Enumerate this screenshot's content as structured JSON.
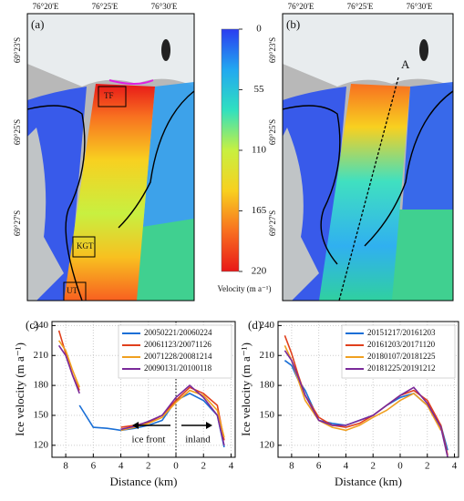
{
  "maps": {
    "panels": [
      "(a)",
      "(b)"
    ],
    "lon_labels": [
      "76°20'E",
      "76°25'E",
      "76°30'E"
    ],
    "lat_labels": [
      "69°23'S",
      "69°25'S",
      "69°27'S"
    ],
    "region_labels": [
      "TF",
      "KGT",
      "UT"
    ],
    "profile_label": "A"
  },
  "colorbar": {
    "label": "Velocity (m a⁻¹)",
    "lim": [
      0,
      220
    ],
    "ticks": [
      0,
      55,
      110,
      165,
      220
    ],
    "colors": [
      "#2a3cf0",
      "#22a8f0",
      "#30e0c0",
      "#c8f040",
      "#f8d020",
      "#f87020",
      "#e81818"
    ]
  },
  "chart_data": [
    {
      "type": "line",
      "panel": "(c)",
      "xlabel": "Distance (km)",
      "ylabel": "Ice velocity (m a⁻¹)",
      "x": [
        8.5,
        8.0,
        7.5,
        7.0,
        6.0,
        5.0,
        4.0,
        3.0,
        2.0,
        1.0,
        0.0,
        -1.0,
        -2.0,
        -3.0,
        -3.5
      ],
      "series": [
        {
          "name": "20050221/20060224",
          "color": "#1a6fd6",
          "values": [
            null,
            null,
            null,
            160,
            138,
            137,
            135,
            137,
            140,
            145,
            165,
            172,
            165,
            150,
            118
          ]
        },
        {
          "name": "20061123/20071126",
          "color": "#e0401c",
          "values": [
            235,
            212,
            190,
            175,
            null,
            null,
            138,
            140,
            143,
            150,
            165,
            178,
            172,
            160,
            125
          ]
        },
        {
          "name": "20071228/20081214",
          "color": "#f0a020",
          "values": [
            225,
            215,
            195,
            178,
            null,
            null,
            135,
            138,
            142,
            148,
            163,
            175,
            170,
            155,
            128
          ]
        },
        {
          "name": "20090131/20100118",
          "color": "#7a2a9a",
          "values": [
            220,
            210,
            190,
            172,
            null,
            null,
            136,
            139,
            144,
            150,
            168,
            180,
            168,
            150,
            120
          ]
        }
      ],
      "xlim": [
        9,
        -4.3
      ],
      "xticks": [
        8,
        6,
        4,
        2,
        0,
        {
          "value": -2,
          "label": "2"
        },
        {
          "value": -4,
          "label": "4"
        }
      ],
      "ylim": [
        108,
        244
      ],
      "yticks": [
        120,
        150,
        180,
        210,
        240
      ],
      "grid": true,
      "legend": "upper right",
      "vline": 0,
      "annotations": [
        "ice front",
        "inland"
      ]
    },
    {
      "type": "line",
      "panel": "(d)",
      "xlabel": "Distance (km)",
      "ylabel": "Ice velocity (m a⁻¹)",
      "x": [
        8.5,
        8.0,
        7.5,
        7.0,
        6.0,
        5.0,
        4.0,
        3.0,
        2.0,
        1.0,
        0.0,
        -1.0,
        -2.0,
        -3.0,
        -3.5
      ],
      "series": [
        {
          "name": "20151217/20161203",
          "color": "#1a6fd6",
          "values": [
            205,
            200,
            185,
            175,
            145,
            142,
            140,
            145,
            150,
            160,
            168,
            172,
            160,
            140,
            115
          ]
        },
        {
          "name": "20161203/20171120",
          "color": "#e0401c",
          "values": [
            230,
            212,
            190,
            170,
            148,
            140,
            138,
            142,
            150,
            160,
            170,
            175,
            165,
            140,
            110
          ]
        },
        {
          "name": "20180107/20181225",
          "color": "#f0a020",
          "values": [
            220,
            205,
            185,
            165,
            145,
            138,
            135,
            140,
            148,
            155,
            165,
            172,
            160,
            135,
            null
          ]
        },
        {
          "name": "20181225/20191212",
          "color": "#7a2a9a",
          "values": [
            215,
            205,
            188,
            170,
            145,
            140,
            140,
            145,
            150,
            160,
            170,
            178,
            162,
            138,
            108
          ]
        }
      ],
      "xlim": [
        9,
        -4.3
      ],
      "xticks": [
        8,
        6,
        4,
        2,
        0,
        {
          "value": -2,
          "label": "2"
        },
        {
          "value": -4,
          "label": "4"
        }
      ],
      "ylim": [
        108,
        244
      ],
      "yticks": [
        120,
        150,
        180,
        210,
        240
      ],
      "grid": true,
      "legend": "upper right"
    }
  ]
}
